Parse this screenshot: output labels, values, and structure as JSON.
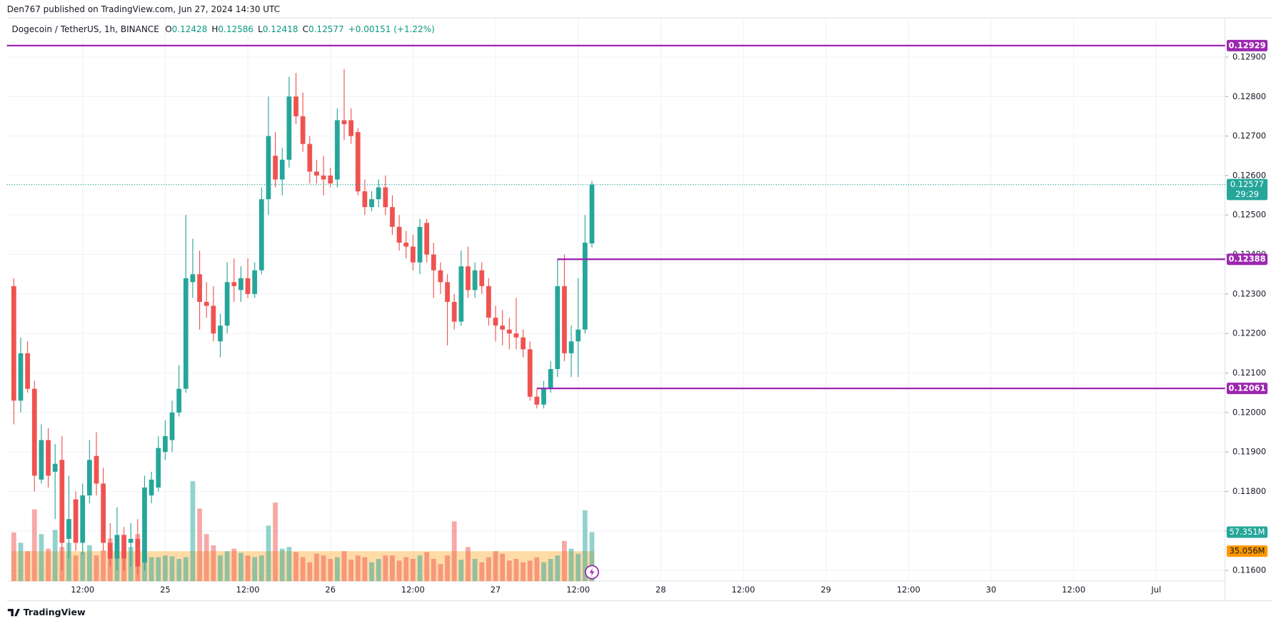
{
  "chart_data": {
    "type": "candlestick",
    "published": "Den767 published on TradingView.com, Jun 27, 2024 14:30 UTC",
    "symbol": "Dogecoin / TetherUS, 1h, BINANCE",
    "ohlc": [
      {
        "key": "O",
        "value": 0.12428
      },
      {
        "key": "H",
        "value": 0.12586
      },
      {
        "key": "L",
        "value": 0.12418
      },
      {
        "key": "C",
        "value": 0.12577
      }
    ],
    "change": "+0.00151 (+1.22%)",
    "countdown": "29:29",
    "brand": "TradingView",
    "up_color": "#26a69a",
    "down_color": "#ef5350",
    "level_color": "#9c27b0",
    "grid": true,
    "xlim": [
      1,
      178
    ],
    "xticks": [
      {
        "value": 12,
        "label": "12:00"
      },
      {
        "value": 24,
        "label": "25"
      },
      {
        "value": 36,
        "label": "12:00"
      },
      {
        "value": 48,
        "label": "26"
      },
      {
        "value": 60,
        "label": "12:00"
      },
      {
        "value": 72,
        "label": "27"
      },
      {
        "value": 84,
        "label": "12:00"
      },
      {
        "value": 96,
        "label": "28"
      },
      {
        "value": 108,
        "label": "12:00"
      },
      {
        "value": 120,
        "label": "29"
      },
      {
        "value": 132,
        "label": "12:00"
      },
      {
        "value": 144,
        "label": "30"
      },
      {
        "value": 156,
        "label": "12:00"
      },
      {
        "value": 168,
        "label": "Jul"
      }
    ],
    "ylim": [
      0.11573,
      0.12999
    ],
    "yticks": [
      {
        "value": 0.116,
        "label": "0.11600"
      },
      {
        "value": 0.117,
        "label": "0.11700"
      },
      {
        "value": 0.118,
        "label": "0.11800"
      },
      {
        "value": 0.119,
        "label": "0.11900"
      },
      {
        "value": 0.12,
        "label": "0.12000"
      },
      {
        "value": 0.121,
        "label": "0.12100"
      },
      {
        "value": 0.122,
        "label": "0.12200"
      },
      {
        "value": 0.123,
        "label": "0.12300"
      },
      {
        "value": 0.124,
        "label": "0.12400"
      },
      {
        "value": 0.125,
        "label": "0.12500"
      },
      {
        "value": 0.126,
        "label": "0.12600"
      },
      {
        "value": 0.127,
        "label": "0.12700"
      },
      {
        "value": 0.128,
        "label": "0.12800"
      },
      {
        "value": 0.129,
        "label": "0.12900"
      }
    ],
    "x": [
      2,
      3,
      4,
      5,
      6,
      7,
      8,
      9,
      10,
      11,
      12,
      13,
      14,
      15,
      16,
      17,
      18,
      19,
      20,
      21,
      22,
      23,
      24,
      25,
      26,
      27,
      28,
      29,
      30,
      31,
      32,
      33,
      34,
      35,
      36,
      37,
      38,
      39,
      40,
      41,
      42,
      43,
      44,
      45,
      46,
      47,
      48,
      49,
      50,
      51,
      52,
      53,
      54,
      55,
      56,
      57,
      58,
      59,
      60,
      61,
      62,
      63,
      64,
      65,
      66,
      67,
      68,
      69,
      70,
      71,
      72,
      73,
      74,
      75,
      76,
      77,
      78,
      79,
      80,
      81,
      82,
      83,
      84,
      85,
      86
    ],
    "open": [
      0.1232,
      0.1203,
      0.1215,
      0.1206,
      0.1183,
      0.1193,
      0.1185,
      0.1188,
      0.1168,
      0.1178,
      0.1167,
      0.1179,
      0.1189,
      0.1182,
      0.1167,
      0.1163,
      0.1169,
      0.1167,
      0.1168,
      0.1162,
      0.1179,
      0.1181,
      0.119,
      0.1193,
      0.12,
      0.1206,
      0.1233,
      0.1235,
      0.1228,
      0.1227,
      0.1218,
      0.1222,
      0.1233,
      0.1231,
      0.1234,
      0.123,
      0.1236,
      0.1254,
      0.1265,
      0.1259,
      0.1264,
      0.128,
      0.1275,
      0.1268,
      0.1261,
      0.126,
      0.126,
      0.1259,
      0.1274,
      0.1274,
      0.1271,
      0.1256,
      0.1252,
      0.1254,
      0.1257,
      0.1252,
      0.1247,
      0.1243,
      0.1242,
      0.1238,
      0.1248,
      0.124,
      0.1236,
      0.1233,
      0.1228,
      0.1223,
      0.1237,
      0.1231,
      0.1236,
      0.1232,
      0.1224,
      0.1222,
      0.1221,
      0.122,
      0.1219,
      0.1216,
      0.1204,
      0.1202,
      0.1206,
      0.1211,
      0.1232,
      0.1215,
      0.1218,
      0.1221,
      0.12428
    ],
    "high": [
      0.1234,
      0.1219,
      0.1218,
      0.1208,
      0.1197,
      0.1196,
      0.1192,
      0.1194,
      0.1184,
      0.118,
      0.1182,
      0.1193,
      0.1195,
      0.1186,
      0.1172,
      0.1176,
      0.1171,
      0.1172,
      0.1173,
      0.1184,
      0.1185,
      0.1194,
      0.1198,
      0.1203,
      0.1212,
      0.125,
      0.1244,
      0.1241,
      0.1233,
      0.1232,
      0.1225,
      0.1238,
      0.1239,
      0.1237,
      0.1239,
      0.1238,
      0.1257,
      0.128,
      0.1271,
      0.1267,
      0.1285,
      0.1286,
      0.1281,
      0.127,
      0.1264,
      0.1265,
      0.1262,
      0.1277,
      0.1287,
      0.1277,
      0.1272,
      0.1259,
      0.1256,
      0.1259,
      0.126,
      0.1255,
      0.125,
      0.1246,
      0.1245,
      0.1249,
      0.1249,
      0.1243,
      0.1238,
      0.1235,
      0.123,
      0.1241,
      0.1242,
      0.1238,
      0.1238,
      0.1234,
      0.1227,
      0.1226,
      0.1224,
      0.1229,
      0.1221,
      0.1218,
      0.1206,
      0.1208,
      0.1213,
      0.1239,
      0.124,
      0.1222,
      0.1234,
      0.125,
      0.12586
    ],
    "low": [
      0.1197,
      0.12,
      0.1205,
      0.118,
      0.1182,
      0.1181,
      0.1173,
      0.116,
      0.1163,
      0.1165,
      0.1164,
      0.1177,
      0.1179,
      0.1165,
      0.1161,
      0.116,
      0.116,
      0.1161,
      0.1159,
      0.116,
      0.1177,
      0.118,
      0.1188,
      0.119,
      0.1199,
      0.1205,
      0.1229,
      0.1221,
      0.1224,
      0.1218,
      0.1214,
      0.122,
      0.1228,
      0.1228,
      0.1229,
      0.1229,
      0.1235,
      0.125,
      0.1257,
      0.1255,
      0.1262,
      0.1273,
      0.1266,
      0.1258,
      0.1258,
      0.1255,
      0.1257,
      0.1257,
      0.1269,
      0.1268,
      0.1255,
      0.125,
      0.1251,
      0.1252,
      0.125,
      0.1245,
      0.1241,
      0.1239,
      0.1236,
      0.1235,
      0.1238,
      0.1229,
      0.123,
      0.1217,
      0.1221,
      0.1222,
      0.1229,
      0.1229,
      0.123,
      0.1222,
      0.1218,
      0.1217,
      0.1216,
      0.1216,
      0.1214,
      0.1203,
      0.1201,
      0.1201,
      0.1205,
      0.1209,
      0.1213,
      0.1209,
      0.1209,
      0.122,
      0.12418
    ],
    "close": [
      0.1203,
      0.1215,
      0.1206,
      0.1184,
      0.1193,
      0.1184,
      0.1187,
      0.1167,
      0.1173,
      0.1167,
      0.1179,
      0.1188,
      0.1182,
      0.1167,
      0.1163,
      0.1169,
      0.1163,
      0.1168,
      0.1161,
      0.1181,
      0.1183,
      0.1191,
      0.1194,
      0.12,
      0.1206,
      0.1234,
      0.1235,
      0.1228,
      0.1227,
      0.122,
      0.1222,
      0.1233,
      0.1232,
      0.1234,
      0.123,
      0.1236,
      0.1254,
      0.127,
      0.1259,
      0.1264,
      0.128,
      0.1275,
      0.1268,
      0.1261,
      0.126,
      0.1259,
      0.1258,
      0.1274,
      0.1273,
      0.127,
      0.1256,
      0.1252,
      0.1254,
      0.1257,
      0.1252,
      0.1247,
      0.1243,
      0.1242,
      0.1238,
      0.1247,
      0.124,
      0.1236,
      0.1233,
      0.1228,
      0.1223,
      0.1237,
      0.1231,
      0.1236,
      0.1232,
      0.1224,
      0.1222,
      0.1221,
      0.122,
      0.1219,
      0.1216,
      0.1204,
      0.1202,
      0.1206,
      0.1211,
      0.1232,
      0.1215,
      0.1218,
      0.1221,
      0.1243,
      0.12577
    ],
    "volume": {
      "ylim": [
        0,
        130
      ],
      "values": [
        57,
        45,
        35,
        84,
        55,
        38,
        60,
        40,
        45,
        30,
        34,
        42,
        30,
        36,
        50,
        45,
        35,
        40,
        55,
        30,
        28,
        28,
        30,
        29,
        26,
        28,
        117,
        85,
        55,
        42,
        30,
        35,
        38,
        33,
        30,
        28,
        30,
        65,
        92,
        38,
        40,
        34,
        28,
        22,
        32,
        30,
        26,
        28,
        35,
        25,
        30,
        28,
        22,
        26,
        30,
        30,
        24,
        28,
        26,
        30,
        34,
        26,
        20,
        30,
        70,
        25,
        40,
        26,
        22,
        28,
        35,
        32,
        24,
        26,
        22,
        24,
        28,
        22,
        26,
        30,
        47,
        38,
        32,
        83,
        57.351
      ],
      "last_label": "57.351M",
      "ma": {
        "value": 35.056,
        "label": "35.056M",
        "color": "#ff9800"
      }
    },
    "levels": [
      {
        "value": 0.12929,
        "start_x": 1
      },
      {
        "value": 0.12388,
        "start_x": 81
      },
      {
        "value": 0.12061,
        "start_x": 78
      }
    ]
  }
}
